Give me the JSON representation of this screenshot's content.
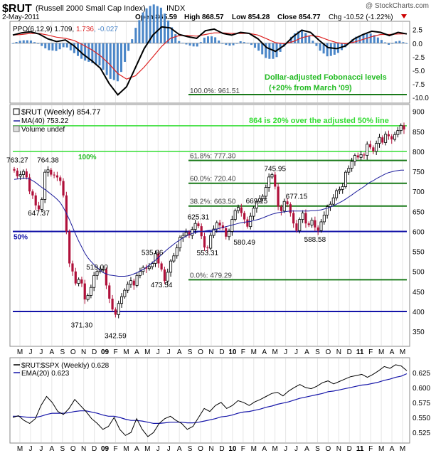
{
  "header": {
    "symbol": "$RUT",
    "name": "(Russell 2000 Small Cap Index)",
    "exchange": "INDX",
    "watermark": "@ StockCharts.com",
    "date": "2-May-2011",
    "open": "Open 865.59",
    "high": "High 868.57",
    "low": "Low 854.28",
    "close": "Close 854.77",
    "chg": "Chg -10.52 (-1.22%)"
  },
  "colors": {
    "up_bar": "#000000",
    "down_bar": "#b0103a",
    "ma": "#1c1c9c",
    "fib_green": "#1a7a1a",
    "bright_green": "#33dd33",
    "blue_line": "#1414a8",
    "ppo_red": "#dd2222",
    "hist": "#4a86c8",
    "label_green": "#22bb22"
  },
  "chart_data": [
    {
      "type": "line",
      "panel": "PPO",
      "legend": [
        "PPO(6,12,9) 1.709, ",
        "1.736",
        ", -0.027"
      ],
      "ylim": [
        -10.5,
        3.5
      ],
      "yticks": [
        2.5,
        0.0,
        -2.5,
        -5.0,
        -7.5,
        -10.0
      ],
      "ytick_labels": [
        "2.5",
        "0.0",
        "-2.5",
        "-5.0",
        "-7.5",
        "-10.0"
      ],
      "series": [
        {
          "name": "PPO(6,12,9)",
          "values": [
            1.5,
            1.9,
            2.1,
            1.7,
            0.8,
            0.3,
            0.6,
            -0.5,
            -2.0,
            -3.2,
            -4.6,
            -7.4,
            -9.5,
            -8.0,
            -4.5,
            -1.0,
            1.5,
            3.0,
            2.8,
            1.6,
            1.2,
            0.9,
            2.3,
            2.6,
            1.8,
            1.5,
            2.0,
            1.8,
            0.8,
            -0.8,
            -1.5,
            -0.4,
            1.2,
            2.4,
            2.0,
            0.5,
            -0.8,
            -1.0,
            -0.5,
            0.8,
            1.6,
            2.2,
            2.0,
            1.4,
            2.0,
            1.709
          ]
        },
        {
          "name": "Signal",
          "values": [
            1.5,
            1.6,
            1.8,
            1.8,
            1.5,
            1.1,
            0.9,
            0.5,
            -0.3,
            -1.2,
            -2.3,
            -3.8,
            -5.6,
            -6.6,
            -6.0,
            -4.4,
            -2.5,
            -0.6,
            0.9,
            1.4,
            1.4,
            1.3,
            1.6,
            1.9,
            1.9,
            1.8,
            1.8,
            1.8,
            1.5,
            0.8,
            0.1,
            -0.1,
            0.3,
            1.0,
            1.4,
            1.2,
            0.6,
            0.1,
            -0.1,
            0.2,
            0.7,
            1.2,
            1.6,
            1.6,
            1.7,
            1.736
          ]
        }
      ]
    },
    {
      "type": "bar",
      "panel": "price",
      "title": "$RUT (Weekly) 854.77",
      "legend": [
        "MA(40) 753.22",
        "Volume undef"
      ],
      "ylim": [
        320,
        910
      ],
      "yticks": [
        350,
        400,
        450,
        500,
        550,
        600,
        650,
        700,
        750,
        800,
        850,
        900
      ],
      "x_labels": [
        "M",
        "J",
        "J",
        "A",
        "S",
        "O",
        "N",
        "D",
        "09",
        "F",
        "M",
        "A",
        "M",
        "J",
        "J",
        "A",
        "S",
        "O",
        "N",
        "D",
        "10",
        "F",
        "M",
        "A",
        "M",
        "J",
        "J",
        "A",
        "S",
        "O",
        "N",
        "D",
        "11",
        "F",
        "M",
        "A",
        "M"
      ],
      "closes": [
        752,
        738,
        742,
        750,
        735,
        700,
        690,
        665,
        655,
        680,
        748,
        754,
        742,
        740,
        735,
        726,
        690,
        600,
        520,
        500,
        470,
        480,
        470,
        430,
        440,
        460,
        490,
        500,
        505,
        505,
        465,
        432,
        405,
        392,
        420,
        437,
        453,
        468,
        477,
        465,
        490,
        500,
        510,
        507,
        512,
        520,
        545,
        520,
        505,
        476,
        498,
        526,
        539,
        559,
        585,
        590,
        598,
        590,
        605,
        620,
        613,
        588,
        560,
        558,
        590,
        606,
        622,
        615,
        608,
        587,
        600,
        630,
        652,
        660,
        646,
        630,
        612,
        638,
        658,
        675,
        682,
        688,
        710,
        736,
        742,
        712,
        662,
        651,
        675,
        668,
        646,
        620,
        602,
        630,
        646,
        620,
        616,
        628,
        610,
        602,
        624,
        641,
        662,
        668,
        684,
        702,
        705,
        712,
        748,
        758,
        775,
        790,
        785,
        792,
        790,
        818,
        810,
        800,
        820,
        835,
        822,
        843,
        838,
        830,
        842,
        852,
        865,
        854.77
      ],
      "ma40": [
        730,
        731,
        732,
        733,
        733,
        731,
        727,
        722,
        716,
        710,
        705,
        699,
        693,
        687,
        680,
        672,
        660,
        645,
        629,
        611,
        593,
        576,
        561,
        546,
        534,
        525,
        517,
        510,
        503,
        497,
        494,
        491,
        490,
        489,
        488,
        488,
        488,
        489,
        491,
        494,
        497,
        501,
        505,
        510,
        516,
        522,
        528,
        535,
        542,
        549,
        556,
        562,
        568,
        574,
        579,
        584,
        588,
        592,
        595,
        597,
        599,
        600,
        601,
        602,
        603,
        604,
        606,
        608,
        610,
        612,
        614,
        616,
        618,
        620,
        622,
        623,
        624,
        625,
        627,
        629,
        631,
        634,
        637,
        640,
        643,
        645,
        647,
        648,
        649,
        650,
        651,
        651,
        651,
        651,
        651,
        651,
        651,
        652,
        652,
        653,
        654,
        656,
        658,
        661,
        664,
        668,
        672,
        676,
        681,
        686,
        691,
        697,
        702,
        707,
        712,
        718,
        723,
        727,
        732,
        736,
        740,
        744,
        747,
        749,
        751,
        752,
        753,
        753.22
      ],
      "h_lines": [
        {
          "price": 864,
          "label": "864 is 20% over the adjusted 50% line"
        },
        {
          "price": 800,
          "label": "100%"
        },
        {
          "price": 600,
          "label": "50%"
        },
        {
          "price": 400,
          "label": ""
        }
      ],
      "fib_levels": [
        {
          "label": "100.0%: 961.51",
          "pct": 100.0,
          "price": 961.51,
          "note": "shown in PPO panel"
        },
        {
          "label": "61.8%: 777.30",
          "pct": 61.8,
          "price": 777.3
        },
        {
          "label": "60.0%: 720.40",
          "pct": 60.0,
          "price": 720.4
        },
        {
          "label": "38.2%: 663.50",
          "pct": 38.2,
          "price": 663.5
        },
        {
          "label": "0.0%: 479.29",
          "pct": 0.0,
          "price": 479.29
        }
      ],
      "annotation_lines": [
        "Dollar-adjusted Fobonacci levels",
        "(+20% from March '09)"
      ],
      "price_labels": [
        {
          "text": "763.27",
          "week": 1,
          "price": 772
        },
        {
          "text": "764.38",
          "week": 11,
          "price": 772
        },
        {
          "text": "647.37",
          "week": 8,
          "price": 640
        },
        {
          "text": "519.00",
          "week": 27,
          "price": 505
        },
        {
          "text": "371.30",
          "week": 22,
          "price": 360
        },
        {
          "text": "342.59",
          "week": 33,
          "price": 333
        },
        {
          "text": "535.86",
          "week": 45,
          "price": 541
        },
        {
          "text": "473.54",
          "week": 48,
          "price": 460
        },
        {
          "text": "625.31",
          "week": 60,
          "price": 630
        },
        {
          "text": "553.31",
          "week": 63,
          "price": 540
        },
        {
          "text": "580.49",
          "week": 75,
          "price": 567
        },
        {
          "text": "745.95",
          "week": 85,
          "price": 751
        },
        {
          "text": "669.15",
          "week": 79,
          "price": 670
        },
        {
          "text": "677.15",
          "week": 92,
          "price": 682
        },
        {
          "text": "588.58",
          "week": 98,
          "price": 574
        }
      ]
    },
    {
      "type": "line",
      "panel": "ratio",
      "legend": [
        "$RUT:$SPX (Weekly) 0.628",
        "EMA(20) 0.623"
      ],
      "ylim": [
        0.512,
        0.645
      ],
      "yticks": [
        0.525,
        0.55,
        0.575,
        0.6,
        0.625
      ],
      "ytick_labels": [
        "0.525",
        "0.550",
        "0.575",
        "0.600",
        "0.625"
      ],
      "series": [
        {
          "name": "$RUT:$SPX",
          "values": [
            0.55,
            0.553,
            0.545,
            0.54,
            0.548,
            0.57,
            0.585,
            0.575,
            0.56,
            0.555,
            0.565,
            0.58,
            0.57,
            0.56,
            0.548,
            0.54,
            0.53,
            0.535,
            0.55,
            0.53,
            0.52,
            0.525,
            0.548,
            0.53,
            0.518,
            0.525,
            0.54,
            0.548,
            0.552,
            0.545,
            0.54,
            0.53,
            0.535,
            0.55,
            0.565,
            0.56,
            0.57,
            0.575,
            0.565,
            0.57,
            0.578,
            0.575,
            0.57,
            0.576,
            0.58,
            0.585,
            0.59,
            0.592,
            0.586,
            0.594,
            0.6,
            0.605,
            0.6,
            0.598,
            0.602,
            0.608,
            0.611,
            0.606,
            0.61,
            0.614,
            0.618,
            0.62,
            0.622,
            0.617,
            0.622,
            0.628,
            0.635,
            0.632,
            0.638,
            0.636,
            0.628
          ]
        },
        {
          "name": "EMA(20)",
          "values": [
            0.552,
            0.552,
            0.551,
            0.55,
            0.55,
            0.552,
            0.555,
            0.557,
            0.557,
            0.557,
            0.558,
            0.56,
            0.561,
            0.561,
            0.559,
            0.557,
            0.554,
            0.552,
            0.552,
            0.55,
            0.547,
            0.545,
            0.545,
            0.544,
            0.542,
            0.54,
            0.54,
            0.541,
            0.542,
            0.542,
            0.542,
            0.541,
            0.541,
            0.542,
            0.544,
            0.546,
            0.548,
            0.551,
            0.552,
            0.554,
            0.557,
            0.559,
            0.56,
            0.562,
            0.564,
            0.567,
            0.569,
            0.572,
            0.574,
            0.576,
            0.579,
            0.582,
            0.584,
            0.586,
            0.588,
            0.59,
            0.593,
            0.594,
            0.596,
            0.598,
            0.6,
            0.602,
            0.604,
            0.605,
            0.607,
            0.609,
            0.612,
            0.614,
            0.617,
            0.619,
            0.623
          ]
        }
      ]
    }
  ]
}
